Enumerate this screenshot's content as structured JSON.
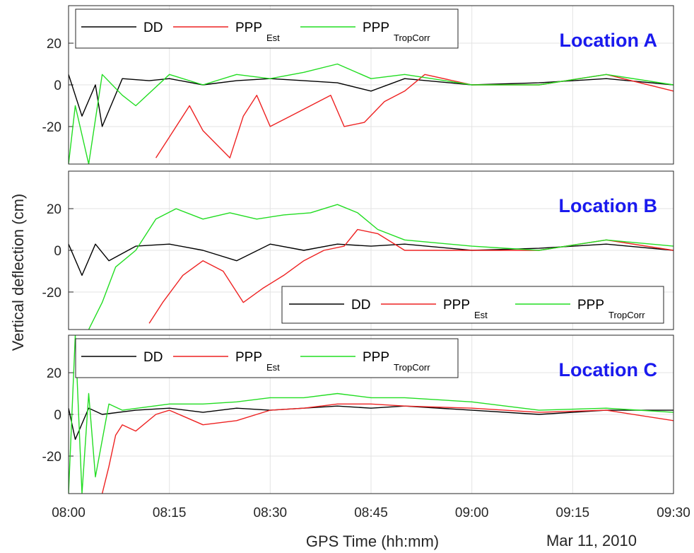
{
  "chart_data": {
    "type": "line",
    "xlabel": "GPS Time (hh:mm)",
    "ylabel": "Vertical deflection (cm)",
    "date_label": "Mar 11, 2010",
    "x_ticks": [
      "08:00",
      "08:15",
      "08:30",
      "08:45",
      "09:00",
      "09:15",
      "09:30"
    ],
    "x_range": [
      "08:00",
      "09:30"
    ],
    "y_ticks": [
      -20,
      0,
      20
    ],
    "ylim": [
      -38,
      38
    ],
    "grid": true,
    "title_color": "#1a1aee",
    "series_styles": [
      {
        "key": "DD",
        "color": "#000000"
      },
      {
        "key": "PPP_Est",
        "color": "#ee2222"
      },
      {
        "key": "PPP_TropCorr",
        "color": "#22dd22"
      }
    ],
    "legend_entries": [
      {
        "main": "DD",
        "sub": ""
      },
      {
        "main": "PPP",
        "sub": "Est"
      },
      {
        "main": "PPP",
        "sub": "TropCorr"
      }
    ],
    "panels": [
      {
        "title": "Location A",
        "legend_position": "top-left",
        "series": [
          {
            "name": "DD",
            "x": [
              "08:00",
              "08:02",
              "08:04",
              "08:05",
              "08:08",
              "08:12",
              "08:15",
              "08:20",
              "08:25",
              "08:30",
              "08:35",
              "08:40",
              "08:45",
              "08:50",
              "09:00",
              "09:10",
              "09:20",
              "09:30"
            ],
            "y": [
              5,
              -15,
              0,
              -20,
              3,
              2,
              3,
              0,
              2,
              3,
              2,
              1,
              -3,
              3,
              0,
              1,
              3,
              0
            ]
          },
          {
            "name": "PPP_Est",
            "x": [
              "08:13",
              "08:15",
              "08:18",
              "08:20",
              "08:24",
              "08:26",
              "08:28",
              "08:30",
              "08:33",
              "08:36",
              "08:39",
              "08:41",
              "08:44",
              "08:47",
              "08:50",
              "08:53",
              "09:00",
              "09:10",
              "09:20",
              "09:30"
            ],
            "y": [
              -35,
              -25,
              -10,
              -22,
              -35,
              -15,
              -5,
              -20,
              -15,
              -10,
              -5,
              -20,
              -18,
              -8,
              -3,
              5,
              0,
              0,
              5,
              -3
            ]
          },
          {
            "name": "PPP_TropCorr",
            "x": [
              "08:00",
              "08:01",
              "08:03",
              "08:05",
              "08:08",
              "08:10",
              "08:15",
              "08:20",
              "08:25",
              "08:30",
              "08:35",
              "08:40",
              "08:45",
              "08:50",
              "09:00",
              "09:10",
              "09:20",
              "09:30"
            ],
            "y": [
              -38,
              -10,
              -38,
              5,
              -5,
              -10,
              5,
              0,
              5,
              3,
              6,
              10,
              3,
              5,
              0,
              0,
              5,
              0
            ]
          }
        ]
      },
      {
        "title": "Location B",
        "legend_position": "bottom-right",
        "series": [
          {
            "name": "DD",
            "x": [
              "08:00",
              "08:02",
              "08:04",
              "08:06",
              "08:10",
              "08:15",
              "08:20",
              "08:25",
              "08:30",
              "08:35",
              "08:40",
              "08:45",
              "08:50",
              "09:00",
              "09:10",
              "09:20",
              "09:30"
            ],
            "y": [
              3,
              -12,
              3,
              -5,
              2,
              3,
              0,
              -5,
              3,
              0,
              3,
              2,
              3,
              0,
              1,
              3,
              0
            ]
          },
          {
            "name": "PPP_Est",
            "x": [
              "08:12",
              "08:14",
              "08:17",
              "08:20",
              "08:23",
              "08:26",
              "08:29",
              "08:32",
              "08:35",
              "08:38",
              "08:41",
              "08:43",
              "08:46",
              "08:50",
              "09:00",
              "09:10",
              "09:20",
              "09:30"
            ],
            "y": [
              -35,
              -25,
              -12,
              -5,
              -10,
              -25,
              -18,
              -12,
              -5,
              0,
              2,
              10,
              8,
              0,
              0,
              0,
              5,
              0
            ]
          },
          {
            "name": "PPP_TropCorr",
            "x": [
              "08:03",
              "08:05",
              "08:07",
              "08:10",
              "08:13",
              "08:16",
              "08:20",
              "08:24",
              "08:28",
              "08:32",
              "08:36",
              "08:40",
              "08:43",
              "08:46",
              "08:50",
              "09:00",
              "09:10",
              "09:20",
              "09:30"
            ],
            "y": [
              -38,
              -25,
              -8,
              0,
              15,
              20,
              15,
              18,
              15,
              17,
              18,
              22,
              18,
              10,
              5,
              2,
              0,
              5,
              2
            ]
          }
        ]
      },
      {
        "title": "Location C",
        "legend_position": "top-left",
        "series": [
          {
            "name": "DD",
            "x": [
              "08:00",
              "08:01",
              "08:03",
              "08:05",
              "08:10",
              "08:15",
              "08:20",
              "08:25",
              "08:30",
              "08:35",
              "08:40",
              "08:45",
              "08:50",
              "09:00",
              "09:10",
              "09:20",
              "09:30"
            ],
            "y": [
              3,
              -12,
              3,
              0,
              2,
              3,
              1,
              3,
              2,
              3,
              4,
              3,
              4,
              2,
              0,
              2,
              2
            ]
          },
          {
            "name": "PPP_Est",
            "x": [
              "08:05",
              "08:06",
              "08:07",
              "08:08",
              "08:10",
              "08:13",
              "08:15",
              "08:20",
              "08:25",
              "08:30",
              "08:35",
              "08:40",
              "08:45",
              "08:50",
              "09:00",
              "09:10",
              "09:20",
              "09:30"
            ],
            "y": [
              -38,
              -25,
              -10,
              -5,
              -8,
              0,
              2,
              -5,
              -3,
              2,
              3,
              5,
              5,
              4,
              3,
              1,
              2,
              -3
            ]
          },
          {
            "name": "PPP_TropCorr",
            "x": [
              "08:00",
              "08:01",
              "08:02",
              "08:03",
              "08:04",
              "08:06",
              "08:08",
              "08:15",
              "08:20",
              "08:25",
              "08:30",
              "08:35",
              "08:40",
              "08:45",
              "08:50",
              "09:00",
              "09:10",
              "09:20",
              "09:30"
            ],
            "y": [
              -38,
              38,
              -38,
              10,
              -30,
              5,
              2,
              5,
              5,
              6,
              8,
              8,
              10,
              8,
              8,
              6,
              2,
              3,
              1
            ]
          }
        ]
      }
    ]
  }
}
